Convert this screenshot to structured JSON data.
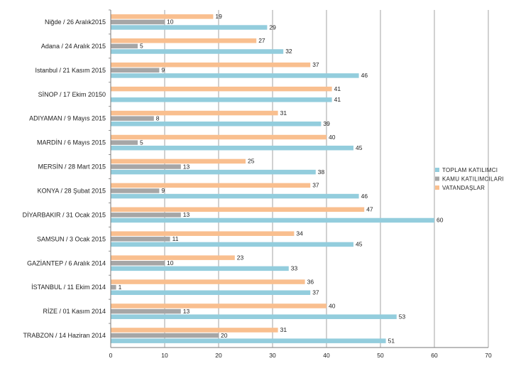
{
  "chart_data": {
    "type": "bar",
    "orientation": "horizontal",
    "categories": [
      "Niğde / 26 Aralık2015",
      "Adana / 24 Aralık 2015",
      "Istanbul / 21 Kasım 2015",
      "SİNOP / 17 Ekim 20150",
      "ADIYAMAN / 9 Mayıs 2015",
      "MARDİN / 6  Mayıs 2015",
      "MERSİN / 28 Mart 2015",
      "KONYA / 28 Şubat 2015",
      "DİYARBAKIR / 31 Ocak 2015",
      "SAMSUN / 3 Ocak 2015",
      "GAZİANTEP / 6 Aralık 2014",
      "İSTANBUL / 11 Ekim 2014",
      "RİZE / 01 Kasım 2014",
      "TRABZON / 14 Haziran 2014"
    ],
    "series": [
      {
        "name": "VATANDAŞLAR",
        "color": "#f9bf8f",
        "values": [
          19,
          27,
          37,
          41,
          31,
          40,
          25,
          37,
          47,
          34,
          23,
          36,
          40,
          31
        ]
      },
      {
        "name": "KAMU  KATILIMCILARI",
        "color": "#a6a6a6",
        "values": [
          10,
          5,
          9,
          null,
          8,
          5,
          13,
          9,
          13,
          11,
          10,
          1,
          13,
          20
        ]
      },
      {
        "name": "TOPLAM  KATILIMCI",
        "color": "#93cddd",
        "values": [
          29,
          32,
          46,
          41,
          39,
          45,
          38,
          46,
          60,
          45,
          33,
          37,
          53,
          51
        ]
      }
    ],
    "legend_order": [
      "TOPLAM  KATILIMCI",
      "KAMU  KATILIMCILARI",
      "VATANDAŞLAR"
    ],
    "xlim": [
      0,
      70
    ],
    "xticks": [
      0,
      10,
      20,
      30,
      40,
      50,
      60,
      70
    ],
    "grid": "vertical",
    "legend_position": "right",
    "title": "",
    "xlabel": "",
    "ylabel": ""
  }
}
